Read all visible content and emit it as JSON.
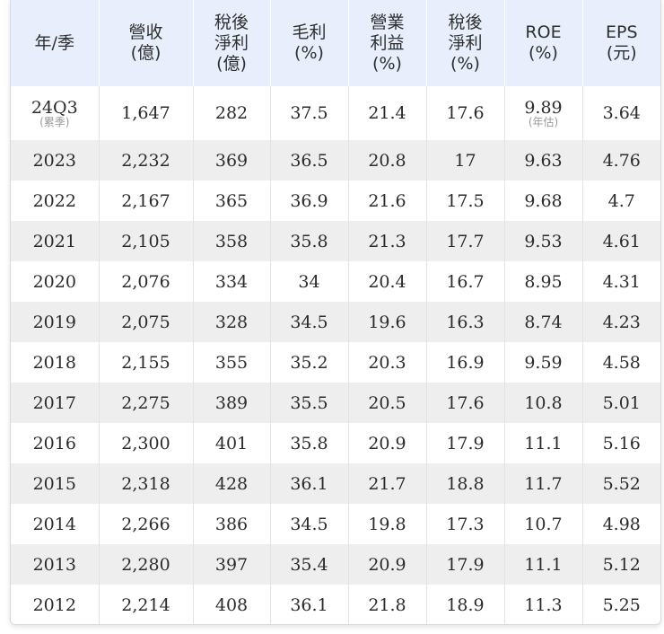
{
  "table": {
    "headers": [
      [
        "年/季"
      ],
      [
        "營收",
        "(億)"
      ],
      [
        "稅後",
        "淨利",
        "(億)"
      ],
      [
        "毛利",
        "(%)"
      ],
      [
        "營業",
        "利益",
        "(%)"
      ],
      [
        "稅後",
        "淨利",
        "(%)"
      ],
      [
        "ROE",
        "(%)"
      ],
      [
        "EPS",
        "(元)"
      ]
    ],
    "first_row": {
      "period": "24Q3",
      "period_note": "(累季)",
      "revenue": "1,647",
      "net_income": "282",
      "gross_margin": "37.5",
      "operating_margin": "21.4",
      "net_margin": "17.6",
      "roe": "9.89",
      "roe_note": "(年估)",
      "eps": "3.64"
    },
    "rows": [
      [
        "2023",
        "2,232",
        "369",
        "36.5",
        "20.8",
        "17",
        "9.63",
        "4.76"
      ],
      [
        "2022",
        "2,167",
        "365",
        "36.9",
        "21.6",
        "17.5",
        "9.68",
        "4.7"
      ],
      [
        "2021",
        "2,105",
        "358",
        "35.8",
        "21.3",
        "17.7",
        "9.53",
        "4.61"
      ],
      [
        "2020",
        "2,076",
        "334",
        "34",
        "20.4",
        "16.7",
        "8.95",
        "4.31"
      ],
      [
        "2019",
        "2,075",
        "328",
        "34.5",
        "19.6",
        "16.3",
        "8.74",
        "4.23"
      ],
      [
        "2018",
        "2,155",
        "355",
        "35.2",
        "20.3",
        "16.9",
        "9.59",
        "4.58"
      ],
      [
        "2017",
        "2,275",
        "389",
        "35.5",
        "20.5",
        "17.6",
        "10.8",
        "5.01"
      ],
      [
        "2016",
        "2,300",
        "401",
        "35.8",
        "20.9",
        "17.9",
        "11.1",
        "5.16"
      ],
      [
        "2015",
        "2,318",
        "428",
        "36.1",
        "21.7",
        "18.8",
        "11.7",
        "5.52"
      ],
      [
        "2014",
        "2,266",
        "386",
        "34.5",
        "19.8",
        "17.3",
        "10.7",
        "4.98"
      ],
      [
        "2013",
        "2,280",
        "397",
        "35.4",
        "20.9",
        "17.9",
        "11.1",
        "5.12"
      ],
      [
        "2012",
        "2,214",
        "408",
        "36.1",
        "21.8",
        "18.9",
        "11.3",
        "5.25"
      ]
    ]
  }
}
